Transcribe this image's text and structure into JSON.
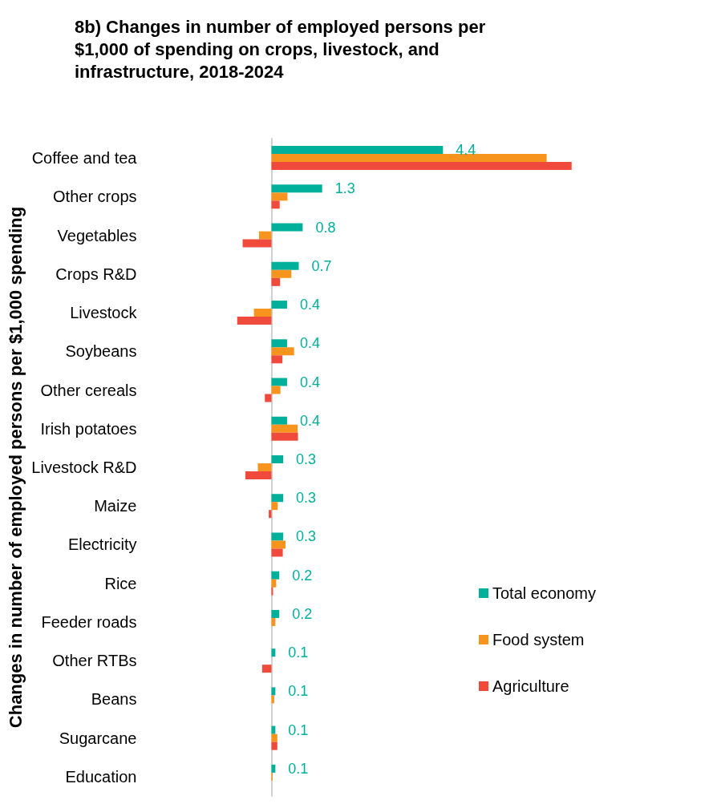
{
  "chart_data": {
    "type": "bar",
    "orientation": "horizontal",
    "title": "8b) Changes in number of employed persons per $1,000 of spending on crops, livestock, and infrastructure, 2018-2024",
    "ylabel": "Changes in number of employed persons per $1,000 spending",
    "categories": [
      "Coffee and tea",
      "Other crops",
      "Vegetables",
      "Crops R&D",
      "Livestock",
      "Soybeans",
      "Other cereals",
      "Irish potatoes",
      "Livestock R&D",
      "Maize",
      "Electricity",
      "Rice",
      "Feeder roads",
      "Other RTBs",
      "Beans",
      "Sugarcane",
      "Education"
    ],
    "series": [
      {
        "name": "Total economy",
        "color": "#00b09b",
        "values": [
          4.4,
          1.3,
          0.8,
          0.7,
          0.4,
          0.4,
          0.4,
          0.4,
          0.3,
          0.3,
          0.3,
          0.2,
          0.2,
          0.1,
          0.1,
          0.1,
          0.1
        ],
        "value_labels": [
          "4.4",
          "1.3",
          "0.8",
          "0.7",
          "0.4",
          "0.4",
          "0.4",
          "0.4",
          "0.3",
          "0.3",
          "0.3",
          "0.2",
          "0.2",
          "0.1",
          "0.1",
          "0.1",
          "0.1"
        ]
      },
      {
        "name": "Food system",
        "color": "#f7941d",
        "values": [
          7.06,
          0.41,
          -0.32,
          0.51,
          -0.45,
          0.58,
          0.23,
          0.67,
          -0.35,
          0.16,
          0.36,
          0.12,
          0.1,
          0,
          0.07,
          0.15,
          0.03
        ]
      },
      {
        "name": "Agriculture",
        "color": "#ef4a3c",
        "values": [
          7.7,
          0.21,
          -0.74,
          0.22,
          -0.88,
          0.28,
          -0.17,
          0.68,
          -0.67,
          -0.07,
          0.29,
          0.04,
          0,
          -0.24,
          0,
          0.15,
          0
        ]
      }
    ],
    "tick_labels": "y",
    "grid": false,
    "legend": "right"
  }
}
